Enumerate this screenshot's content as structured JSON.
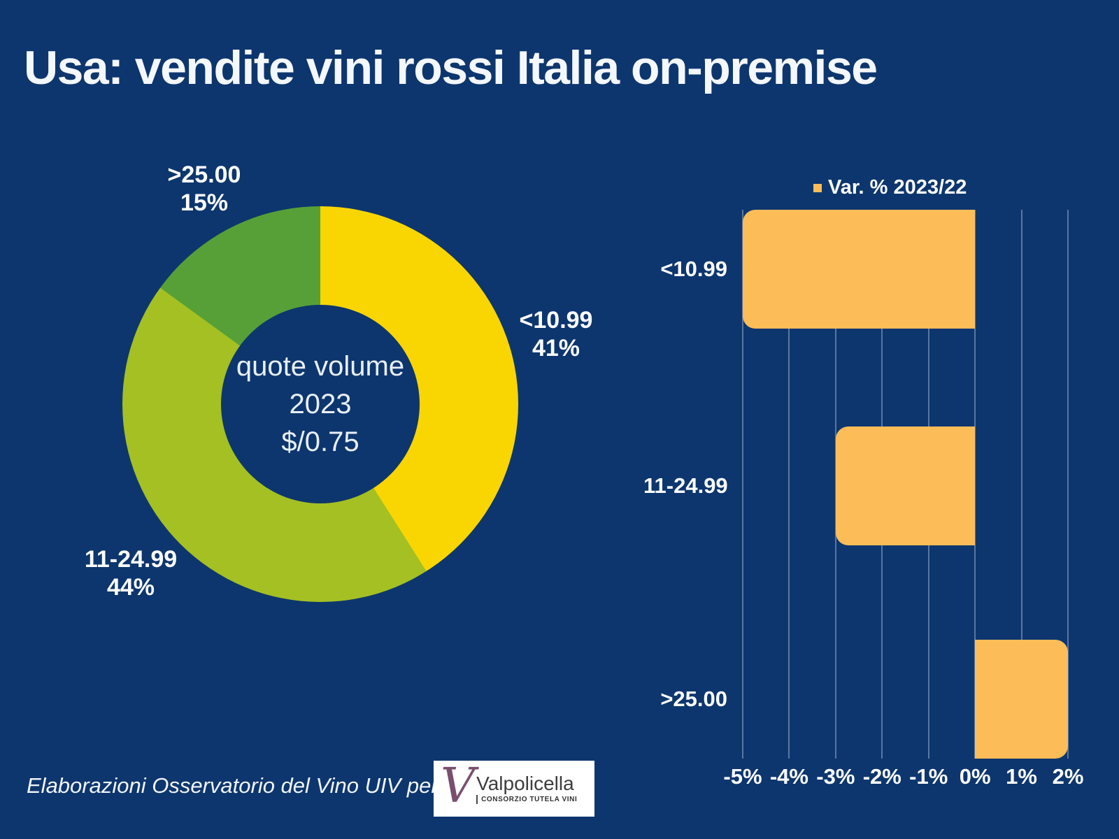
{
  "title": "Usa: vendite vini rossi Italia on-premise",
  "colors": {
    "background": "#0d366e",
    "yellow": "#f9d602",
    "lime": "#a4c022",
    "green": "#57a038",
    "orange": "#fcbd58"
  },
  "chart_data": [
    {
      "type": "pie",
      "donut": true,
      "start_angle": "top",
      "center_label_lines": [
        "quote volume",
        "2023",
        "$/0.75"
      ],
      "slices": [
        {
          "label": "<10.99",
          "value_pct": 41,
          "pct_label": "41%",
          "color": "#f9d602"
        },
        {
          "label": "11-24.99",
          "value_pct": 44,
          "pct_label": "44%",
          "color": "#a4c022"
        },
        {
          "label": ">25.00",
          "value_pct": 15,
          "pct_label": "15%",
          "color": "#57a038"
        }
      ]
    },
    {
      "type": "bar",
      "orientation": "horizontal",
      "legend": {
        "label": "Var. % 2023/22",
        "marker_color": "#fcbd58",
        "position": "top"
      },
      "categories": [
        "<10.99",
        "11-24.99",
        ">25.00"
      ],
      "values_pct": [
        -5,
        -3,
        2
      ],
      "xlim": [
        -5,
        2
      ],
      "x_ticks": [
        "-5%",
        "-4%",
        "-3%",
        "-2%",
        "-1%",
        "0%",
        "1%",
        "2%"
      ],
      "bar_color": "#fcbd58",
      "grid": true
    }
  ],
  "footer": {
    "attribution": "Elaborazioni Osservatorio del Vino UIV per",
    "logo": {
      "mark": "V",
      "brand": "Valpolicella",
      "subtitle": "CONSORZIO TUTELA VINI"
    }
  }
}
